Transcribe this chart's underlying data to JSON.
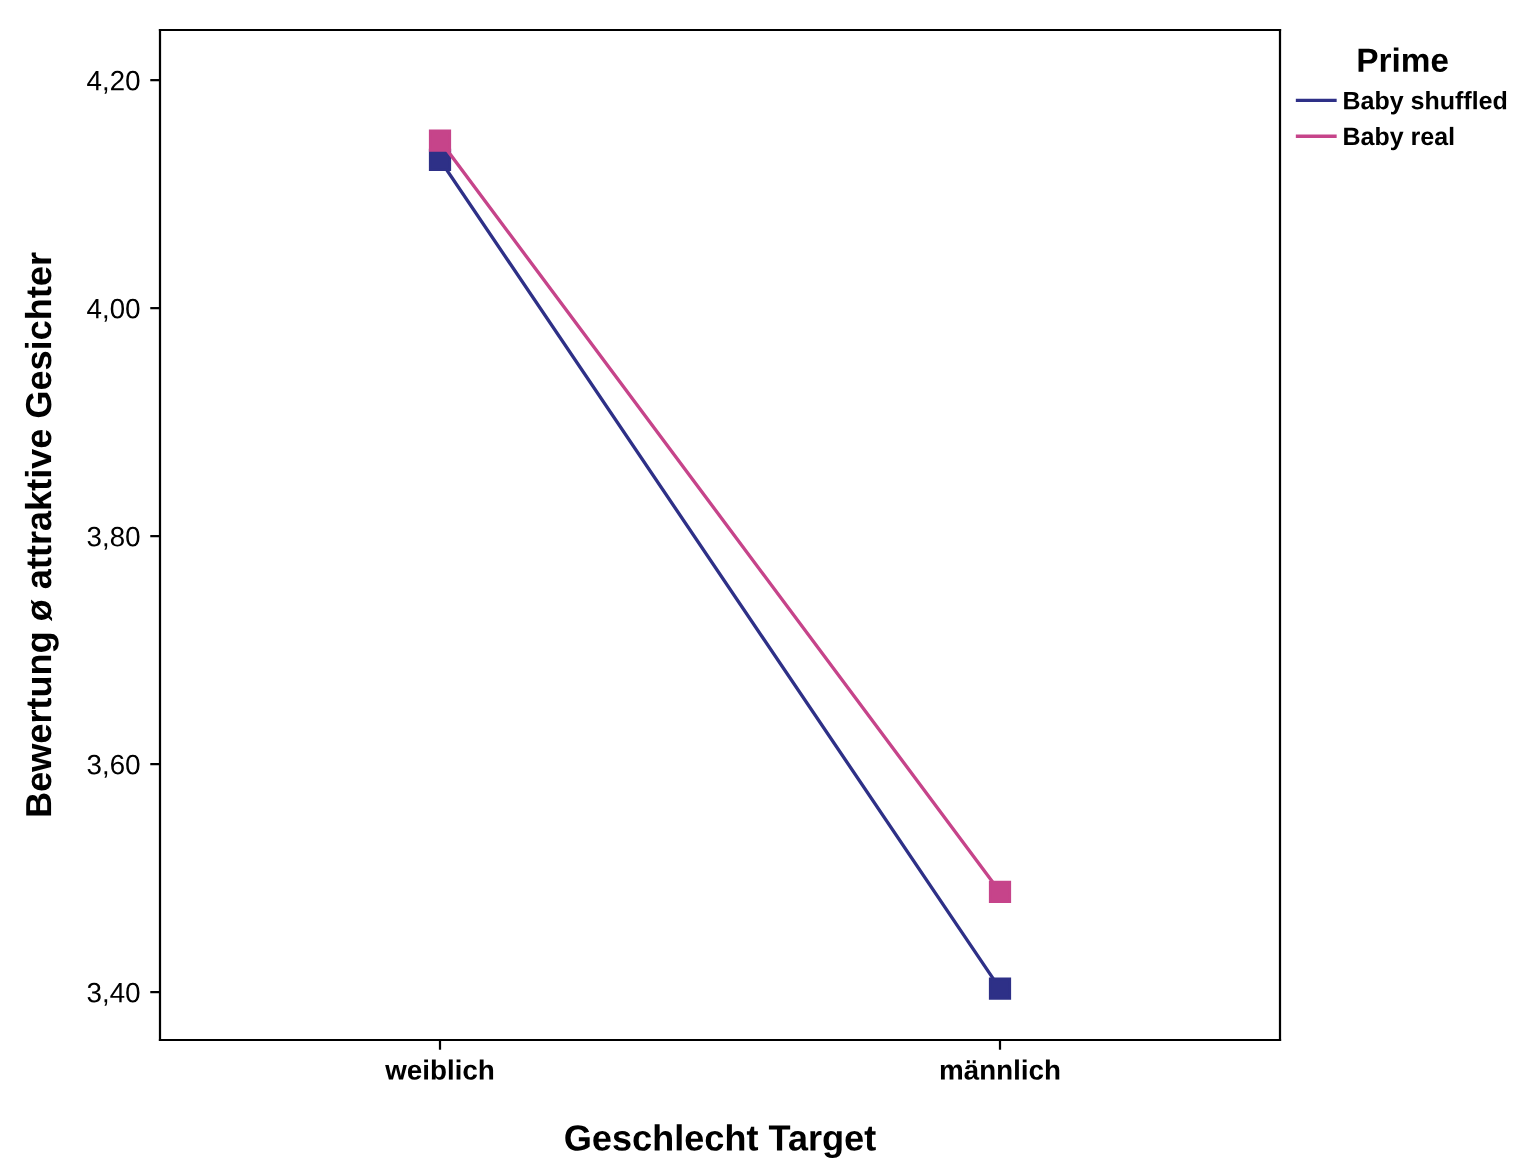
{
  "chart_data": {
    "type": "line",
    "xlabel": "Geschlecht Target",
    "ylabel": "Bewertung ø attraktive Gesichter",
    "legend_title": "Prime",
    "legend": "top right",
    "marker": "square",
    "line_style": "solid",
    "grid": false,
    "categories": [
      "weiblich",
      "männlich"
    ],
    "ylim": [
      3.358,
      4.244
    ],
    "yticks": [
      {
        "value": 3.4,
        "label": "3,40"
      },
      {
        "value": 3.6,
        "label": "3,60"
      },
      {
        "value": 3.8,
        "label": "3,80"
      },
      {
        "value": 4.0,
        "label": "4,00"
      },
      {
        "value": 4.2,
        "label": "4,20"
      }
    ],
    "series": [
      {
        "name": "Baby shuffled",
        "color": "#2e3087",
        "values": [
          4.13,
          3.403
        ]
      },
      {
        "name": "Baby real",
        "color": "#c6448a",
        "values": [
          4.147,
          3.488
        ]
      }
    ]
  }
}
